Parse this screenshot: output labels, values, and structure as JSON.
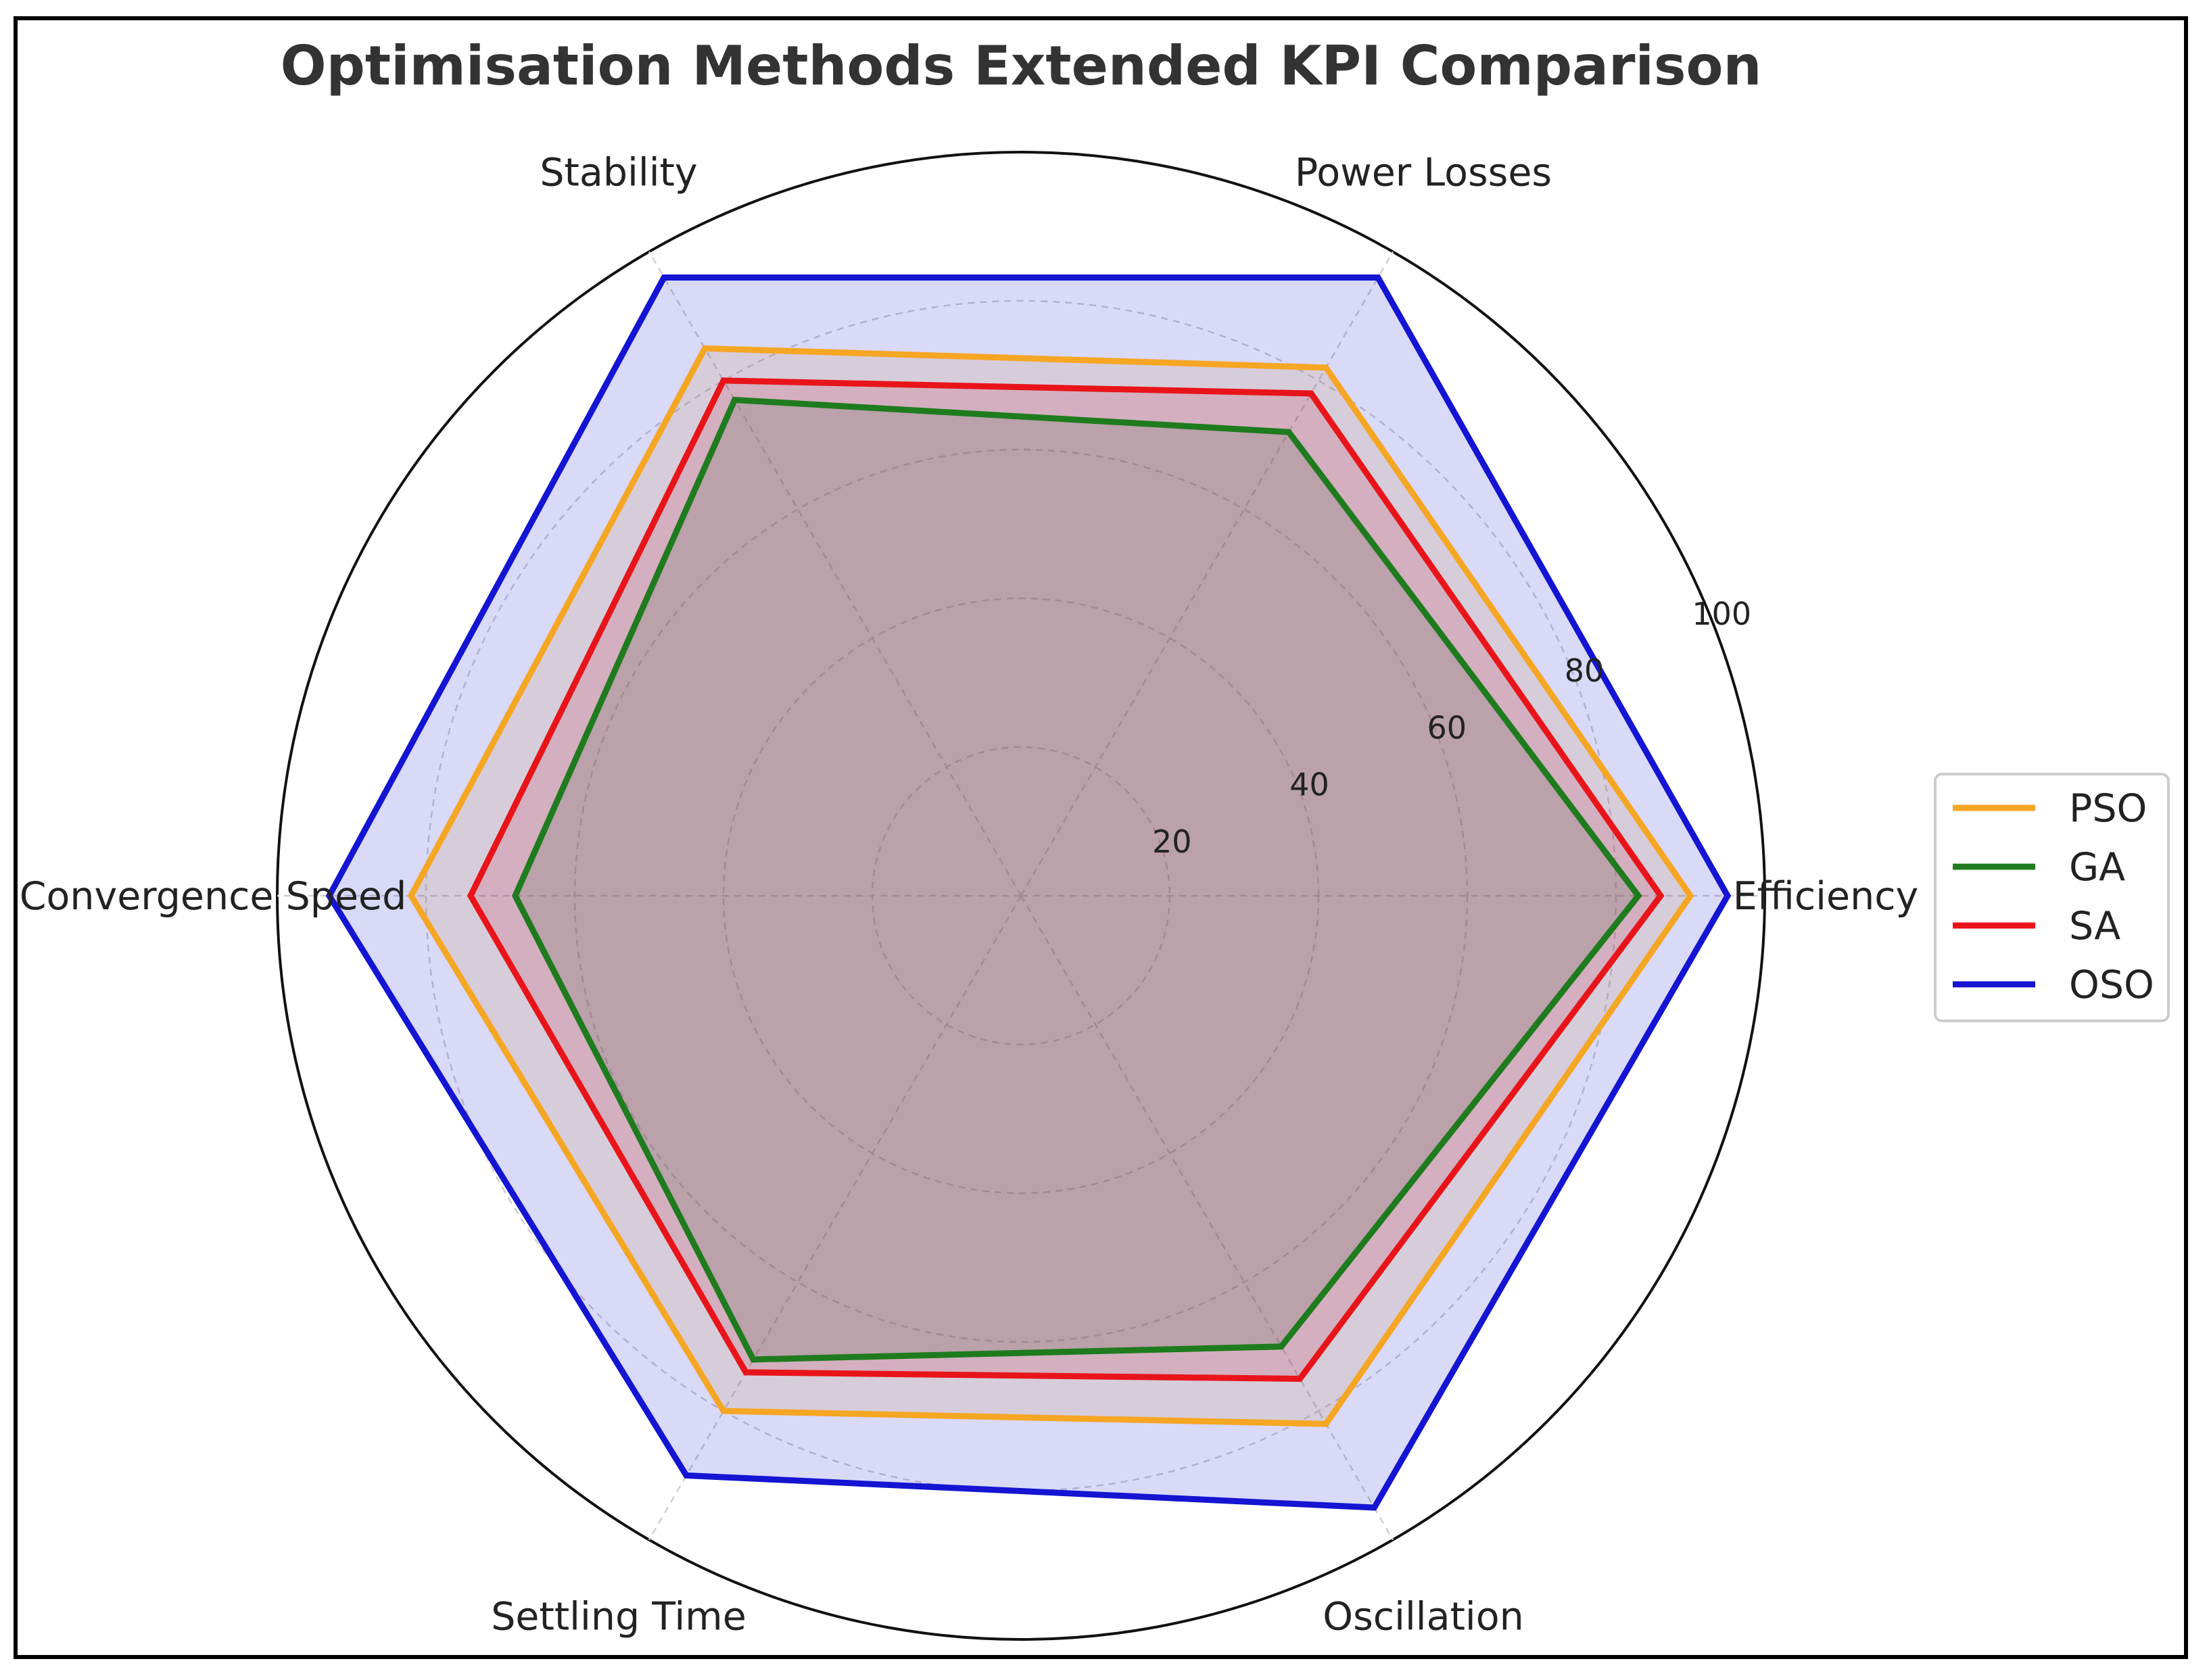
{
  "chart_data": {
    "type": "radar",
    "title": "Optimisation Methods Extended KPI Comparison",
    "categories": [
      "Efficiency",
      "Power Losses",
      "Stability",
      "Convergence Speed",
      "Settling Time",
      "Oscillation"
    ],
    "rlim": [
      0,
      100
    ],
    "rticks": [
      20,
      40,
      60,
      80,
      100
    ],
    "rtick_labels": [
      "20",
      "40",
      "60",
      "80",
      "100"
    ],
    "grid": true,
    "legend_position": "right",
    "series": [
      {
        "name": "PSO",
        "color": "#f5a623",
        "values": [
          90,
          82,
          85,
          82,
          80,
          82
        ]
      },
      {
        "name": "GA",
        "color": "#1e7b1e",
        "values": [
          83,
          72,
          77,
          68,
          72,
          70
        ]
      },
      {
        "name": "SA",
        "color": "#e8141a",
        "values": [
          86,
          78,
          80,
          74,
          74,
          75
        ]
      },
      {
        "name": "OSO",
        "color": "#1414d2",
        "values": [
          95,
          96,
          96,
          93,
          90,
          95
        ]
      }
    ],
    "fill_colors": {
      "PSO": "#f5a623",
      "GA": "#1e7b1e",
      "SA": "#e8141a",
      "OSO": "#1414d2"
    }
  }
}
